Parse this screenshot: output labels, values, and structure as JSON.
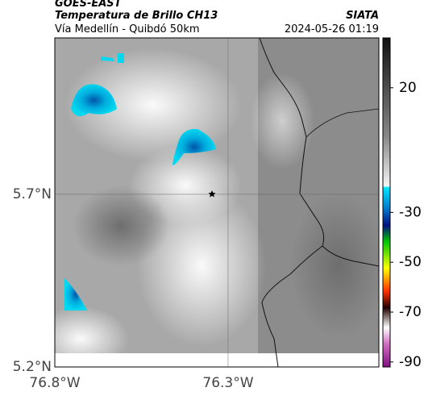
{
  "header": {
    "title": "GOES-EAST",
    "subtitle": "Temperatura de Brillo CH13",
    "source": "SIATA",
    "route": "Vía Medellín - Quibdó 50km",
    "timestamp": "2024-05-26 01:19"
  },
  "map": {
    "latlim": [
      5.2,
      6.153
    ],
    "lonlim": [
      -76.8,
      -75.865
    ],
    "lat_ticks": [
      {
        "value": 5.7,
        "label": "5.7°N"
      },
      {
        "value": 5.2,
        "label": "5.2°N"
      }
    ],
    "lon_ticks": [
      {
        "value": -76.8,
        "label": "76.8°W"
      },
      {
        "value": -76.3,
        "label": "76.3°W"
      }
    ]
  },
  "colorbar": {
    "lim": [
      -92,
      40
    ],
    "ticks": [
      20,
      -30,
      -50,
      -70,
      -90
    ]
  }
}
